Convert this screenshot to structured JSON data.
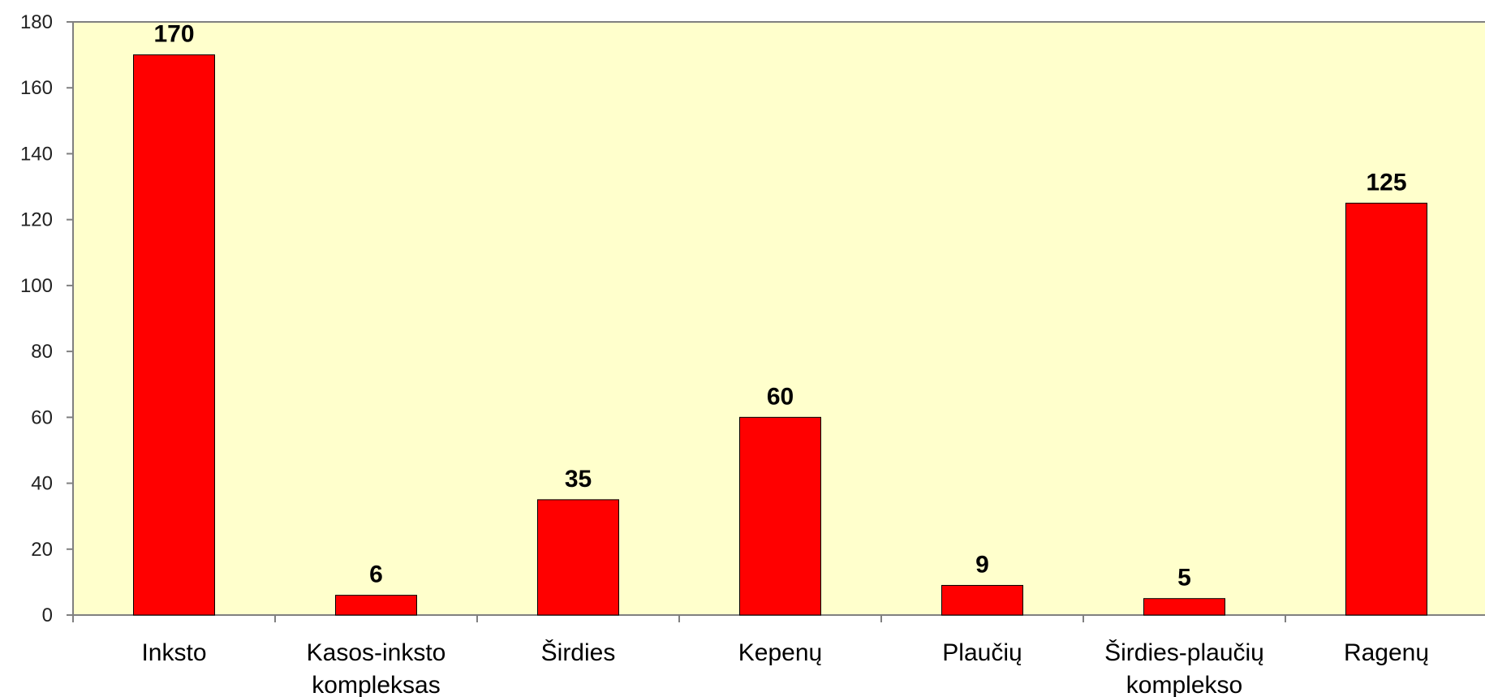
{
  "chart_data": {
    "type": "bar",
    "categories": [
      [
        "Inksto"
      ],
      [
        "Kasos-inksto",
        "kompleksas"
      ],
      [
        "Širdies"
      ],
      [
        "Kepenų"
      ],
      [
        "Plaučių"
      ],
      [
        "Širdies-plaučių",
        "komplekso"
      ],
      [
        "Ragenų"
      ]
    ],
    "values": [
      170,
      6,
      35,
      60,
      9,
      5,
      125
    ],
    "data_labels": [
      "170",
      "6",
      "35",
      "60",
      "9",
      "5",
      "125"
    ],
    "title": "",
    "xlabel": "",
    "ylabel": "",
    "ylim": [
      0,
      180
    ],
    "yticks": [
      0,
      20,
      40,
      60,
      80,
      100,
      120,
      140,
      160,
      180
    ],
    "grid": false,
    "legend": "none",
    "colors": {
      "bar": "#ff0000",
      "bar_edge": "#000000",
      "plot_background": "#ffffcc",
      "axis": "#808080"
    }
  }
}
